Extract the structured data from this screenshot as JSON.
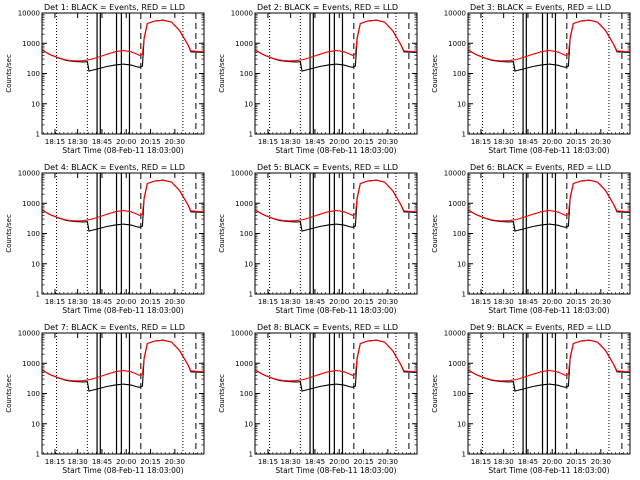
{
  "panel_titles": [
    "Det 1: BLACK = Events, RED = LLD",
    "Det 2: BLACK = Events, RED = LLD",
    "Det 3: BLACK = Events, RED = LLD",
    "Det 4: BLACK = Events, RED = LLD",
    "Det 5: BLACK = Events, RED = LLD",
    "Det 6: BLACK = Events, RED = LLD",
    "Det 7: BLACK = Events, RED = LLD",
    "Det 8: BLACK = Events, RED = LLD",
    "Det 9: BLACK = Events, RED = LLD"
  ],
  "xlabel": "Start Time (08-Feb-11 18:03:00)",
  "ylabel": "Counts/sec",
  "x_ticks": [
    "18:15",
    "18:30",
    "18:45",
    "20:00",
    "20:15",
    "20:30"
  ],
  "y_ticks": [
    "1",
    "10",
    "100",
    "1000",
    "10000"
  ],
  "colors": {
    "events": "#000000",
    "lld": "#ff0000",
    "axes": "#000000",
    "background": "#ffffff"
  },
  "chart_data": {
    "type": "line",
    "layout": "3x3 grid",
    "yscale": "log",
    "ylim": [
      1,
      10000
    ],
    "xlim_minutes_after_start": [
      0,
      100
    ],
    "dotted_markers_minutes": [
      9,
      28,
      87
    ],
    "dashed_markers_minutes": [
      61,
      95
    ],
    "spike_markers_minutes": [
      34,
      36,
      46,
      49,
      54
    ],
    "series": [
      {
        "name": "BLACK = Events",
        "color": "#000000",
        "points": [
          [
            0,
            600
          ],
          [
            5,
            420
          ],
          [
            10,
            330
          ],
          [
            15,
            270
          ],
          [
            20,
            250
          ],
          [
            25,
            240
          ],
          [
            28,
            245
          ],
          [
            29,
            120
          ],
          [
            30,
            125
          ],
          [
            35,
            145
          ],
          [
            40,
            170
          ],
          [
            45,
            190
          ],
          [
            50,
            205
          ],
          [
            55,
            190
          ],
          [
            58,
            170
          ],
          [
            60,
            160
          ],
          [
            62,
            175
          ],
          [
            63,
            1400
          ],
          [
            65,
            4500
          ],
          [
            70,
            5500
          ],
          [
            75,
            5800
          ],
          [
            80,
            5000
          ],
          [
            85,
            2600
          ],
          [
            90,
            900
          ],
          [
            92,
            520
          ],
          [
            100,
            500
          ]
        ]
      },
      {
        "name": "RED = LLD",
        "color": "#ff0000",
        "points": [
          [
            0,
            600
          ],
          [
            5,
            420
          ],
          [
            10,
            330
          ],
          [
            15,
            280
          ],
          [
            20,
            260
          ],
          [
            25,
            265
          ],
          [
            30,
            290
          ],
          [
            35,
            350
          ],
          [
            40,
            430
          ],
          [
            45,
            520
          ],
          [
            50,
            580
          ],
          [
            55,
            520
          ],
          [
            58,
            450
          ],
          [
            60,
            400
          ],
          [
            62,
            420
          ],
          [
            63,
            1500
          ],
          [
            65,
            4500
          ],
          [
            70,
            5500
          ],
          [
            75,
            5800
          ],
          [
            80,
            5000
          ],
          [
            85,
            2600
          ],
          [
            90,
            900
          ],
          [
            92,
            560
          ],
          [
            100,
            520
          ]
        ]
      }
    ]
  }
}
